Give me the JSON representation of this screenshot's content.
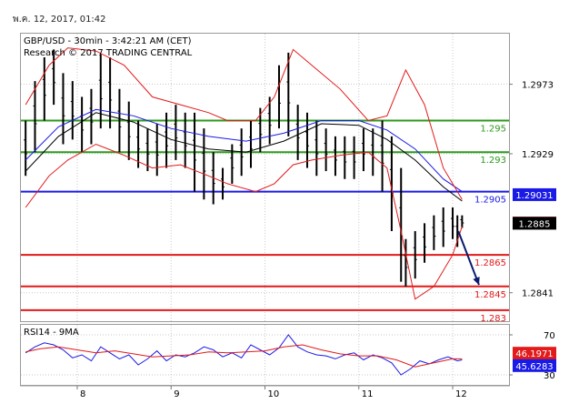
{
  "header": {
    "date_stamp": "พ.ค. 12, 2017, 01:42"
  },
  "chart_data": [
    {
      "type": "line",
      "panel": "price",
      "title": "GBP/USD - 30min - 3:42:21 AM (CET)",
      "subtitle": "Research © 2017 TRADING CENTRAL",
      "x_tick_labels": [
        "8",
        "9",
        "10",
        "11",
        "12"
      ],
      "x_range": [
        7.4,
        12.6
      ],
      "ylim": [
        1.2823,
        1.3005
      ],
      "y_tick_labels": [
        {
          "value": 1.2973,
          "label": "1.2973"
        },
        {
          "value": 1.2929,
          "label": "1.2929"
        },
        {
          "value": 1.2841,
          "label": "1.2841"
        }
      ],
      "levels": [
        {
          "value": 1.295,
          "label": "1.295",
          "color": "#2e9a1e"
        },
        {
          "value": 1.293,
          "label": "1.293",
          "color": "#2e9a1e"
        },
        {
          "value": 1.2905,
          "label": "1.2905",
          "color": "#1a1ae6"
        },
        {
          "value": 1.2865,
          "label": "1.2865",
          "color": "#e21a1a"
        },
        {
          "value": 1.2845,
          "label": "1.2845",
          "color": "#e21a1a"
        },
        {
          "value": 1.283,
          "label": "1.283",
          "color": "#e21a1a"
        }
      ],
      "value_badges": [
        {
          "value": 1.29031,
          "label": "1.29031",
          "bg": "#1a1ae6",
          "fg": "#ffffff"
        },
        {
          "value": 1.28851,
          "label": "1.28851",
          "bg": "#e21a1a",
          "fg": "#ffffff"
        },
        {
          "value": 1.2885,
          "label": "1.2885",
          "bg": "#000000",
          "fg": "#ffffff"
        }
      ],
      "forecast_arrow": {
        "x_from": 12.06,
        "y_from": 1.288,
        "x_to": 12.28,
        "y_to": 1.2846,
        "color": "#0a1a6e"
      },
      "series": [
        {
          "style": "bars",
          "color": "#000000",
          "x": [
            7.45,
            7.55,
            7.65,
            7.75,
            7.85,
            7.95,
            8.05,
            8.15,
            8.25,
            8.35,
            8.45,
            8.55,
            8.65,
            8.75,
            8.85,
            8.95,
            9.05,
            9.15,
            9.25,
            9.35,
            9.45,
            9.55,
            9.65,
            9.75,
            9.85,
            9.95,
            10.05,
            10.15,
            10.25,
            10.35,
            10.45,
            10.55,
            10.65,
            10.75,
            10.85,
            10.95,
            11.05,
            11.15,
            11.25,
            11.35,
            11.45,
            11.5,
            11.6,
            11.7,
            11.8,
            11.9,
            12.0,
            12.05,
            12.1
          ],
          "high": [
            1.295,
            1.2975,
            1.299,
            1.2995,
            1.298,
            1.2975,
            1.2965,
            1.297,
            1.2992,
            1.299,
            1.297,
            1.2962,
            1.295,
            1.2945,
            1.2948,
            1.2955,
            1.296,
            1.2955,
            1.2955,
            1.2945,
            1.293,
            1.292,
            1.2935,
            1.2945,
            1.295,
            1.2958,
            1.2965,
            1.2985,
            1.2993,
            1.296,
            1.2955,
            1.295,
            1.2945,
            1.294,
            1.294,
            1.294,
            1.2945,
            1.2945,
            1.295,
            1.294,
            1.292,
            1.2875,
            1.288,
            1.2885,
            1.289,
            1.2895,
            1.2895,
            1.289,
            1.289
          ],
          "low": [
            1.2915,
            1.293,
            1.295,
            1.296,
            1.2935,
            1.2938,
            1.293,
            1.2935,
            1.2945,
            1.2945,
            1.293,
            1.2925,
            1.292,
            1.2918,
            1.2915,
            1.292,
            1.2925,
            1.292,
            1.2905,
            1.29,
            1.2897,
            1.29,
            1.291,
            1.2915,
            1.292,
            1.293,
            1.2935,
            1.2945,
            1.294,
            1.2925,
            1.292,
            1.2915,
            1.2918,
            1.2915,
            1.2913,
            1.2913,
            1.2918,
            1.2915,
            1.2905,
            1.288,
            1.2848,
            1.2845,
            1.285,
            1.286,
            1.2868,
            1.287,
            1.2875,
            1.287,
            1.2882
          ]
        },
        {
          "style": "line",
          "color": "#1a1ae6",
          "x": [
            7.45,
            7.8,
            8.2,
            8.6,
            9.0,
            9.4,
            9.8,
            10.2,
            10.6,
            11.0,
            11.3,
            11.6,
            11.9,
            12.1
          ],
          "y": [
            1.2925,
            1.2946,
            1.2957,
            1.2953,
            1.2945,
            1.294,
            1.2937,
            1.2942,
            1.295,
            1.295,
            1.2944,
            1.2932,
            1.2913,
            1.2905
          ]
        },
        {
          "style": "line",
          "color": "#000000",
          "x": [
            7.45,
            7.8,
            8.2,
            8.6,
            9.0,
            9.4,
            9.8,
            10.2,
            10.6,
            11.0,
            11.3,
            11.6,
            11.9,
            12.1
          ],
          "y": [
            1.2918,
            1.294,
            1.2955,
            1.2949,
            1.2938,
            1.2932,
            1.293,
            1.2937,
            1.2948,
            1.2947,
            1.2938,
            1.2925,
            1.2908,
            1.2899
          ]
        },
        {
          "style": "line",
          "color": "#e21a1a",
          "x": [
            7.45,
            7.7,
            7.9,
            8.2,
            8.5,
            8.8,
            9.1,
            9.4,
            9.6,
            9.9,
            10.1,
            10.3,
            10.5,
            10.8,
            11.1,
            11.3,
            11.5,
            11.7,
            11.9,
            12.1
          ],
          "y": [
            1.296,
            1.2985,
            1.2996,
            1.2994,
            1.2985,
            1.2965,
            1.296,
            1.2955,
            1.295,
            1.295,
            1.2965,
            1.2995,
            1.2985,
            1.297,
            1.295,
            1.2953,
            1.2982,
            1.296,
            1.292,
            1.29
          ]
        },
        {
          "style": "line",
          "color": "#e21a1a",
          "x": [
            7.45,
            7.7,
            7.9,
            8.2,
            8.5,
            8.8,
            9.1,
            9.4,
            9.6,
            9.9,
            10.1,
            10.3,
            10.5,
            10.8,
            11.1,
            11.3,
            11.45,
            11.6,
            11.8,
            12.0,
            12.1
          ],
          "y": [
            1.2895,
            1.2915,
            1.2925,
            1.2935,
            1.2928,
            1.292,
            1.2922,
            1.2915,
            1.291,
            1.2905,
            1.291,
            1.2922,
            1.2925,
            1.2928,
            1.293,
            1.292,
            1.288,
            1.2837,
            1.2845,
            1.2865,
            1.2883
          ]
        }
      ]
    },
    {
      "type": "line",
      "panel": "oscillator",
      "title": "RSI14 - 9MA",
      "x_tick_labels": [
        "8",
        "9",
        "10",
        "11",
        "12"
      ],
      "x_range": [
        7.4,
        12.6
      ],
      "ylim": [
        20,
        80
      ],
      "y_tick_labels": [
        {
          "value": 70,
          "label": "70"
        },
        {
          "value": 30,
          "label": "30"
        }
      ],
      "value_badges": [
        {
          "value": 46.1971,
          "label": "46.1971",
          "bg": "#e21a1a",
          "fg": "#ffffff"
        },
        {
          "value": 45.6283,
          "label": "45.6283",
          "bg": "#1a1ae6",
          "fg": "#ffffff"
        }
      ],
      "series": [
        {
          "color": "#1a1ae6",
          "x": [
            7.45,
            7.55,
            7.65,
            7.75,
            7.85,
            7.95,
            8.05,
            8.15,
            8.25,
            8.35,
            8.45,
            8.55,
            8.65,
            8.75,
            8.85,
            8.95,
            9.05,
            9.15,
            9.25,
            9.35,
            9.45,
            9.55,
            9.65,
            9.75,
            9.85,
            9.95,
            10.05,
            10.15,
            10.25,
            10.35,
            10.45,
            10.55,
            10.65,
            10.75,
            10.85,
            10.95,
            11.05,
            11.15,
            11.25,
            11.35,
            11.45,
            11.55,
            11.65,
            11.75,
            11.85,
            11.95,
            12.05,
            12.1
          ],
          "y": [
            52,
            58,
            62,
            60,
            55,
            47,
            50,
            44,
            58,
            52,
            46,
            50,
            40,
            46,
            54,
            44,
            50,
            48,
            52,
            58,
            55,
            48,
            52,
            47,
            60,
            55,
            50,
            57,
            70,
            58,
            53,
            50,
            49,
            46,
            50,
            52,
            45,
            50,
            47,
            42,
            30,
            36,
            44,
            41,
            45,
            48,
            44,
            45
          ]
        },
        {
          "color": "#e21a1a",
          "x": [
            7.45,
            7.6,
            7.8,
            8.0,
            8.2,
            8.4,
            8.6,
            8.8,
            9.0,
            9.2,
            9.4,
            9.6,
            9.8,
            10.0,
            10.2,
            10.4,
            10.6,
            10.8,
            11.0,
            11.2,
            11.4,
            11.6,
            11.8,
            12.0,
            12.1
          ],
          "y": [
            53,
            56,
            58,
            55,
            52,
            54,
            51,
            48,
            49,
            50,
            53,
            52,
            53,
            54,
            58,
            60,
            55,
            51,
            49,
            49,
            45,
            38,
            42,
            46,
            46
          ]
        }
      ]
    }
  ]
}
